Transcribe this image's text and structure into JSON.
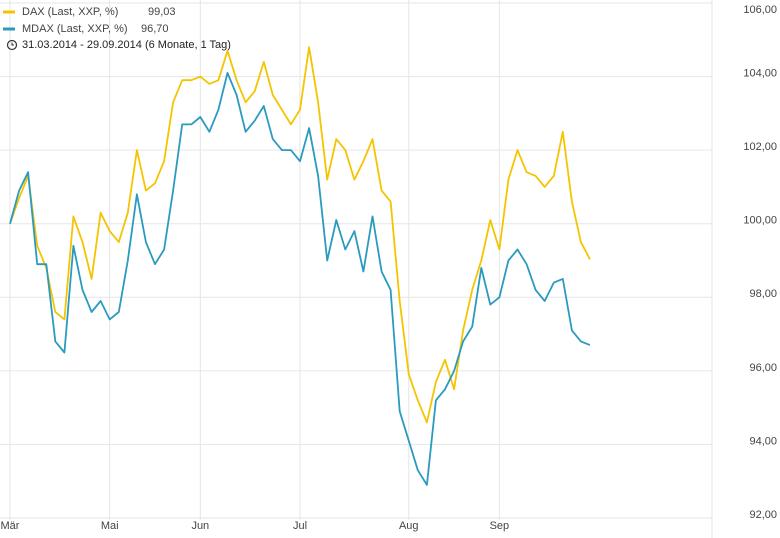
{
  "chart_data": {
    "type": "line",
    "subtitle": "31.03.2014 - 29.09.2014 (6 Monate, 1 Tag)",
    "categories": [
      "Mär",
      null,
      null,
      null,
      null,
      null,
      null,
      null,
      null,
      null,
      null,
      "Mai",
      null,
      null,
      null,
      null,
      null,
      null,
      null,
      null,
      null,
      "Jun",
      null,
      null,
      null,
      null,
      null,
      null,
      null,
      null,
      null,
      null,
      "Jul",
      null,
      null,
      null,
      null,
      null,
      null,
      null,
      null,
      null,
      null,
      null,
      "Aug",
      null,
      null,
      null,
      null,
      null,
      null,
      null,
      null,
      null,
      "Sep",
      null,
      null,
      null,
      null,
      null,
      null,
      null,
      null,
      null,
      null
    ],
    "series": [
      {
        "name": "DAX (Last, XXP, %)",
        "last_value_label": "99,03",
        "color": "#f5c400",
        "values": [
          100.0,
          100.7,
          101.3,
          99.4,
          98.8,
          97.6,
          97.4,
          100.2,
          99.5,
          98.5,
          100.3,
          99.8,
          99.5,
          100.3,
          102.0,
          100.9,
          101.1,
          101.7,
          103.3,
          103.9,
          103.9,
          104.0,
          103.8,
          103.9,
          104.7,
          103.9,
          103.3,
          103.6,
          104.4,
          103.5,
          103.1,
          102.7,
          103.1,
          104.8,
          103.3,
          101.2,
          102.3,
          102.0,
          101.2,
          101.7,
          102.3,
          100.9,
          100.6,
          97.9,
          95.9,
          95.2,
          94.6,
          95.7,
          96.3,
          95.5,
          97.1,
          98.2,
          99.0,
          100.1,
          99.3,
          101.2,
          102.0,
          101.4,
          101.3,
          101.0,
          101.3,
          102.5,
          100.6,
          99.5,
          99.03
        ]
      },
      {
        "name": "MDAX (Last, XXP, %)",
        "last_value_label": "96,70",
        "color": "#2a9bbf",
        "values": [
          100.0,
          100.9,
          101.4,
          98.9,
          98.9,
          96.8,
          96.5,
          99.4,
          98.2,
          97.6,
          97.9,
          97.4,
          97.6,
          99.0,
          100.8,
          99.5,
          98.9,
          99.3,
          100.9,
          102.7,
          102.7,
          102.9,
          102.5,
          103.1,
          104.1,
          103.5,
          102.5,
          102.8,
          103.2,
          102.3,
          102.0,
          102.0,
          101.7,
          102.6,
          101.3,
          99.0,
          100.1,
          99.3,
          99.8,
          98.7,
          100.2,
          98.7,
          98.2,
          94.9,
          94.1,
          93.3,
          92.9,
          95.2,
          95.5,
          96.0,
          96.8,
          97.2,
          98.8,
          97.8,
          98.0,
          99.0,
          99.3,
          98.9,
          98.2,
          97.9,
          98.4,
          98.5,
          97.1,
          96.8,
          96.7
        ]
      }
    ],
    "ylim": [
      92,
      106
    ],
    "yticks": [
      {
        "value": 92,
        "label": "92,00"
      },
      {
        "value": 94,
        "label": "94,00"
      },
      {
        "value": 96,
        "label": "96,00"
      },
      {
        "value": 98,
        "label": "98,00"
      },
      {
        "value": 100,
        "label": "100,00"
      },
      {
        "value": 102,
        "label": "102,00"
      },
      {
        "value": 104,
        "label": "104,00"
      },
      {
        "value": 106,
        "label": "106,00"
      }
    ],
    "grid": true
  }
}
